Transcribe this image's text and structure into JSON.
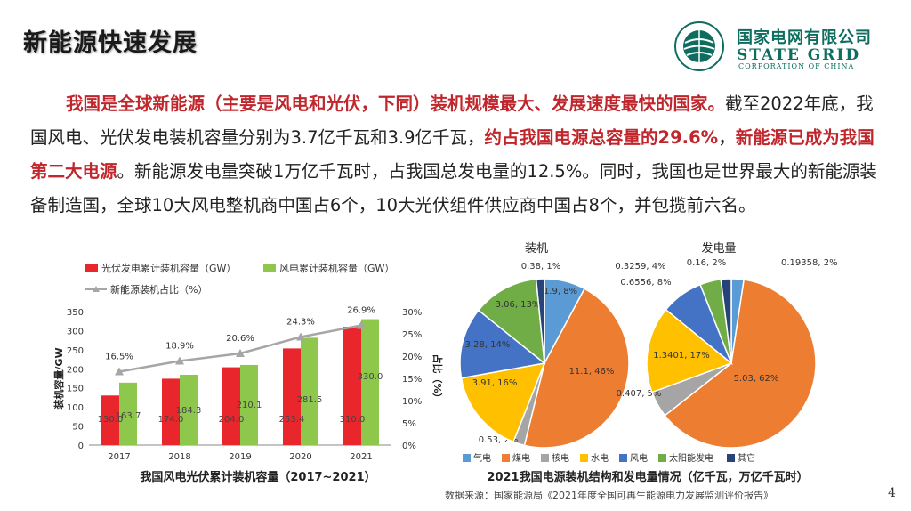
{
  "slide": {
    "title": "新能源快速发展",
    "page_number": "4",
    "source": "数据来源：国家能源局《2021年度全国可再生能源电力发展监测评价报告》"
  },
  "logo": {
    "cn": "国家电网有限公司",
    "en": "STATE GRID",
    "sub": "CORPORATION OF CHINA"
  },
  "paragraph": {
    "p1_red": "我国是全球新能源（主要是风电和光伏，下同）装机规模最大、发展速度最快的国家。",
    "p2": "截至2022年底，我国风电、光伏发电装机容量分别为3.7亿千瓦和3.9亿千瓦，",
    "p3_red": "约占我国电源总容量的29.6%",
    "p4": "，",
    "p5_red": "新能源已成为我国第二大电源",
    "p6": "。新能源发电量突破1万亿千瓦时，占我国总发电量的12.5%。同时，我国也是世界最大的新能源装备制造国，全球10大风电整机商中国占6个，10大光伏组件供应商中国占8个，并包揽前六名。"
  },
  "chart_data": [
    {
      "type": "bar",
      "title": "我国风电光伏累计装机容量（2017~2021）",
      "categories": [
        "2017",
        "2018",
        "2019",
        "2020",
        "2021"
      ],
      "series": [
        {
          "name": "光伏发电累计装机容量（GW）",
          "values": [
            130.0,
            174.0,
            204.0,
            253.4,
            310.0
          ],
          "color": "#e8262b"
        },
        {
          "name": "风电累计装机容量（GW）",
          "values": [
            163.7,
            184.3,
            210.1,
            281.5,
            330.0
          ],
          "color": "#8dc84d"
        },
        {
          "name": "新能源装机占比（%）",
          "type": "line",
          "axis": "right",
          "values": [
            16.5,
            18.9,
            20.6,
            24.3,
            26.9
          ],
          "color": "#a6a6a6"
        }
      ],
      "ylabel": "装机容量/GW",
      "y2label": "占比（%）",
      "ylim": [
        0,
        350
      ],
      "y2lim": [
        0,
        30
      ],
      "yticks": [
        "0",
        "50",
        "100",
        "150",
        "200",
        "250",
        "300",
        "350"
      ],
      "y2ticks": [
        "0%",
        "5%",
        "10%",
        "15%",
        "20%",
        "25%",
        "30%"
      ],
      "legend_position": "top"
    },
    {
      "type": "pie",
      "title": "装机",
      "labels": [
        "气电",
        "煤电",
        "核电",
        "水电",
        "风电",
        "太阳能发电",
        "其它"
      ],
      "values": [
        1.9,
        11.1,
        0.53,
        3.91,
        3.28,
        3.06,
        0.38
      ],
      "value_labels": [
        "1.9, 8%",
        "11.1, 46%",
        "0.53, 2%",
        "3.91, 16%",
        "3.28, 14%",
        "3.06, 13%",
        "0.38, 1%"
      ],
      "colors": [
        "#5b9bd5",
        "#ed7d31",
        "#a5a5a5",
        "#ffc000",
        "#4472c4",
        "#70ad47",
        "#264478"
      ]
    },
    {
      "type": "pie",
      "title": "发电量",
      "labels": [
        "气电",
        "煤电",
        "核电",
        "水电",
        "风电",
        "太阳能发电",
        "其它"
      ],
      "values": [
        0.19358,
        5.03,
        0.407,
        1.3401,
        0.6556,
        0.3259,
        0.16
      ],
      "value_labels": [
        "0.19358, 2%",
        "5.03, 62%",
        "0.407, 5%",
        "1.3401, 17%",
        "0.6556, 8%",
        "0.3259, 4%",
        "0.16, 2%"
      ],
      "colors": [
        "#5b9bd5",
        "#ed7d31",
        "#a5a5a5",
        "#ffc000",
        "#4472c4",
        "#70ad47",
        "#264478"
      ]
    }
  ],
  "pie_caption": "2021我国电源装机结构和发电量情况（亿千瓦，万亿千瓦时）"
}
